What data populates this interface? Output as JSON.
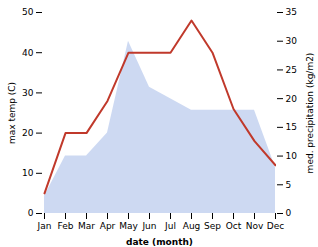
{
  "chart_data": {
    "type": "line",
    "xlabel": "date (month)",
    "ylabel": "max temp (C)",
    "y2label": "med. precipitation (kg/m2)",
    "categories": [
      "Jan",
      "Feb",
      "Mar",
      "Apr",
      "May",
      "Jun",
      "Jul",
      "Aug",
      "Sep",
      "Oct",
      "Nov",
      "Dec"
    ],
    "ylim": [
      0,
      50
    ],
    "yticks": [
      0,
      10,
      20,
      30,
      40,
      50
    ],
    "y2lim": [
      0,
      35
    ],
    "y2ticks": [
      0,
      5,
      10,
      15,
      20,
      25,
      30,
      35
    ],
    "series": [
      {
        "type": "line",
        "axis": "y",
        "color": "#c0392b",
        "values": [
          5,
          20,
          20,
          28,
          40,
          40,
          40,
          48,
          40,
          26,
          18,
          12
        ]
      },
      {
        "type": "area",
        "axis": "y2",
        "color": "#b8c9ec",
        "values": [
          3,
          10,
          10,
          14,
          30,
          22,
          20,
          18,
          18,
          18,
          18,
          8
        ]
      }
    ]
  }
}
